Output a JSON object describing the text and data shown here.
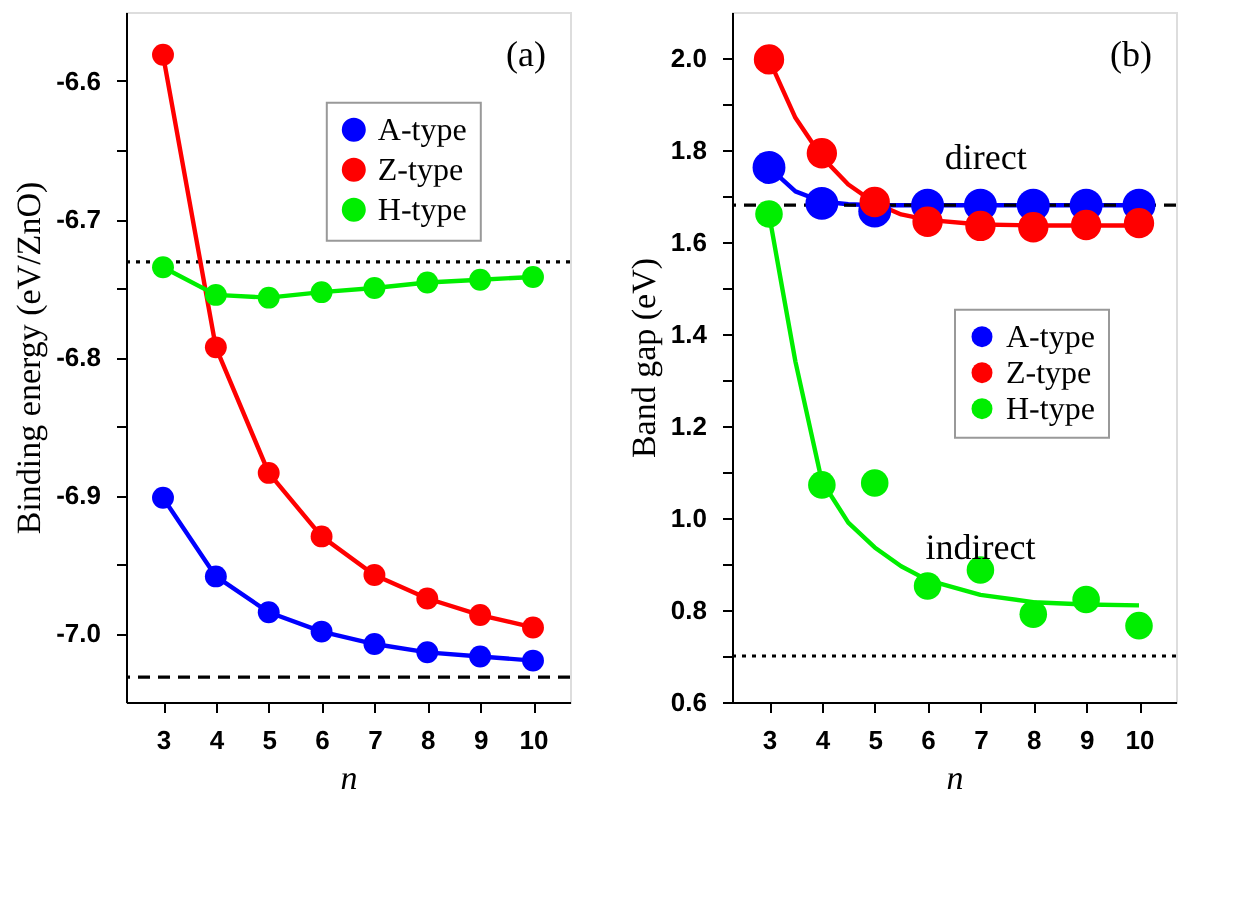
{
  "chart_data": [
    {
      "type": "line",
      "xlabel": "n",
      "ylabel": "Binding energy (eV/ZnO)",
      "x": [
        3,
        4,
        5,
        6,
        7,
        8,
        9,
        10
      ],
      "xlim": [
        2.3,
        10.7
      ],
      "xticks": [
        3,
        4,
        5,
        6,
        7,
        8,
        9,
        10
      ],
      "ylim": [
        -7.05,
        -6.55
      ],
      "yticks": [
        {
          "value": -7.0,
          "label": "-7.0"
        },
        {
          "value": -6.95,
          "label": null
        },
        -6.9,
        {
          "value": -6.85,
          "label": null
        },
        -6.8,
        {
          "value": -6.75,
          "label": null
        },
        -6.7,
        {
          "value": -6.65,
          "label": null
        },
        -6.6
      ],
      "grid": false,
      "legend": "top right",
      "marker": "circle",
      "line_style": "solid",
      "series": [
        {
          "name": "A-type",
          "color": "#0000ff",
          "values": [
            -6.902,
            -6.959,
            -6.985,
            -6.999,
            -7.008,
            -7.014,
            -7.017,
            -7.02
          ]
        },
        {
          "name": "Z-type",
          "color": "#ff0000",
          "values": [
            -6.581,
            -6.793,
            -6.884,
            -6.93,
            -6.958,
            -6.975,
            -6.987,
            -6.996
          ]
        },
        {
          "name": "H-type",
          "color": "#00ee00",
          "values": [
            -6.735,
            -6.755,
            -6.757,
            -6.753,
            -6.75,
            -6.746,
            -6.744,
            -6.742
          ]
        }
      ],
      "ref_lines": [
        {
          "axis": "y",
          "value": -6.731,
          "line_style": "dotted",
          "color": "#000000"
        },
        {
          "axis": "y",
          "value": -7.032,
          "line_style": "dashed",
          "color": "#000000"
        }
      ],
      "annotations": [
        "(a)"
      ]
    },
    {
      "type": "scatter",
      "xlabel": "n",
      "ylabel": "Band gap (eV)",
      "x": [
        3,
        4,
        5,
        6,
        7,
        8,
        9,
        10
      ],
      "xlim": [
        2.3,
        10.7
      ],
      "xticks": [
        3,
        4,
        5,
        6,
        7,
        8,
        9,
        10
      ],
      "ylim": [
        0.6,
        2.1
      ],
      "yticks": [
        0.6,
        {
          "value": 0.7,
          "label": null
        },
        0.8,
        {
          "value": 0.9,
          "label": null
        },
        {
          "value": 1.0,
          "label": "1.0"
        },
        {
          "value": 1.1,
          "label": null
        },
        1.2,
        {
          "value": 1.3,
          "label": null
        },
        1.4,
        {
          "value": 1.5,
          "label": null
        },
        1.6,
        {
          "value": 1.7,
          "label": null
        },
        1.8,
        {
          "value": 1.9,
          "label": null
        },
        {
          "value": 2.0,
          "label": "2.0"
        }
      ],
      "grid": false,
      "legend": "right",
      "marker": "circle",
      "series": [
        {
          "type": "line",
          "line_style": "solid",
          "marker": "none",
          "color": "#0000ff",
          "x": [
            3,
            3.5,
            4,
            4.5,
            5,
            6,
            7,
            8,
            9,
            10
          ],
          "values": [
            1.762,
            1.71,
            1.688,
            1.682,
            1.68,
            1.68,
            1.68,
            1.68,
            1.68,
            1.68
          ]
        },
        {
          "type": "line",
          "line_style": "solid",
          "marker": "none",
          "color": "#ff0000",
          "x": [
            3,
            3.5,
            4,
            4.5,
            5,
            5.5,
            6,
            7,
            8,
            9,
            10
          ],
          "values": [
            1.997,
            1.87,
            1.785,
            1.725,
            1.685,
            1.66,
            1.648,
            1.638,
            1.636,
            1.636,
            1.636
          ]
        },
        {
          "type": "line",
          "line_style": "solid",
          "marker": "none",
          "color": "#00ee00",
          "x": [
            3,
            3.25,
            3.5,
            4,
            4.5,
            5,
            5.5,
            6,
            7,
            8,
            9,
            10
          ],
          "values": [
            1.661,
            1.5,
            1.34,
            1.08,
            0.99,
            0.936,
            0.895,
            0.865,
            0.833,
            0.817,
            0.812,
            0.81
          ]
        },
        {
          "name": "A-type",
          "color": "#0000ff",
          "values": [
            1.762,
            1.684,
            1.667,
            1.68,
            1.68,
            1.68,
            1.68,
            1.68
          ]
        },
        {
          "name": "Z-type",
          "color": "#ff0000",
          "values": [
            1.997,
            1.793,
            1.687,
            1.644,
            1.635,
            1.632,
            1.637,
            1.641
          ]
        },
        {
          "name": "H-type",
          "color": "#00ee00",
          "values": [
            1.661,
            1.072,
            1.076,
            0.852,
            0.887,
            0.791,
            0.823,
            0.766
          ]
        }
      ],
      "ref_lines": [
        {
          "axis": "y",
          "value": 1.68,
          "line_style": "dashed",
          "color": "#000000"
        },
        {
          "axis": "y",
          "value": 0.7,
          "line_style": "dotted",
          "color": "#000000"
        }
      ],
      "annotations": [
        "(b)",
        {
          "text": "direct",
          "x": 7.1,
          "y": 1.68
        },
        {
          "text": "indirect",
          "x": 7.0,
          "y": 0.833
        }
      ]
    }
  ]
}
